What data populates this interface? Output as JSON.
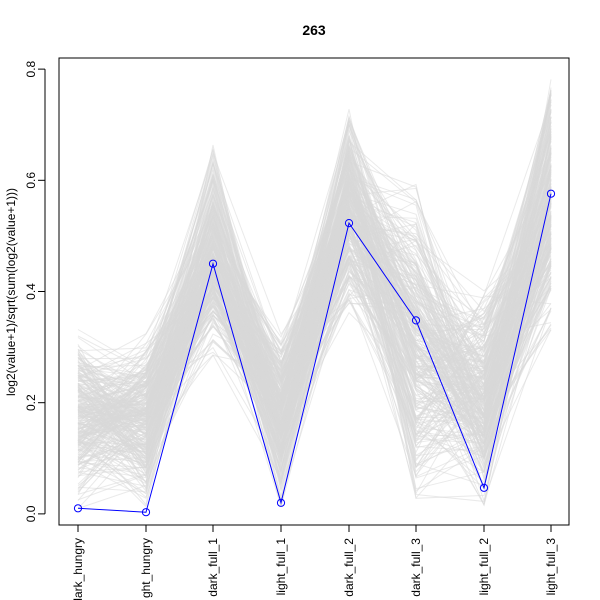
{
  "chart_data": {
    "type": "line",
    "title": "263",
    "xlabel": "",
    "ylabel": "log2(value+1)/sqrt(sum(log2(value+1)))",
    "categories": [
      "dark_hungry",
      "light_hungry",
      "dark_full_1",
      "light_full_1",
      "dark_full_2",
      "dark_full_3",
      "light_full_2",
      "light_full_3"
    ],
    "category_labels_as_shown": [
      "dark_hungry",
      "ght_hungry",
      "dark_full_1",
      "light_full_1",
      "dark_full_2",
      "dark_full_3",
      "light_full_2",
      "light_full_3"
    ],
    "ylim": [
      -0.02,
      0.82
    ],
    "yticks": [
      0.0,
      0.2,
      0.4,
      0.6,
      0.8
    ],
    "grid": false,
    "series": [
      {
        "values": [
          0.01,
          0.003,
          0.45,
          0.02,
          0.523,
          0.348,
          0.047,
          0.576
        ],
        "color": "#0000ff",
        "marker": "open-circle"
      }
    ],
    "background_lines": {
      "color": "#d9d9d9",
      "description_count": 300,
      "ranges": [
        [
          0.0,
          0.34
        ],
        [
          0.0,
          0.33
        ],
        [
          0.25,
          0.67
        ],
        [
          0.0,
          0.33
        ],
        [
          0.34,
          0.75
        ],
        [
          0.0,
          0.61
        ],
        [
          0.0,
          0.41
        ],
        [
          0.31,
          0.8
        ]
      ]
    }
  }
}
